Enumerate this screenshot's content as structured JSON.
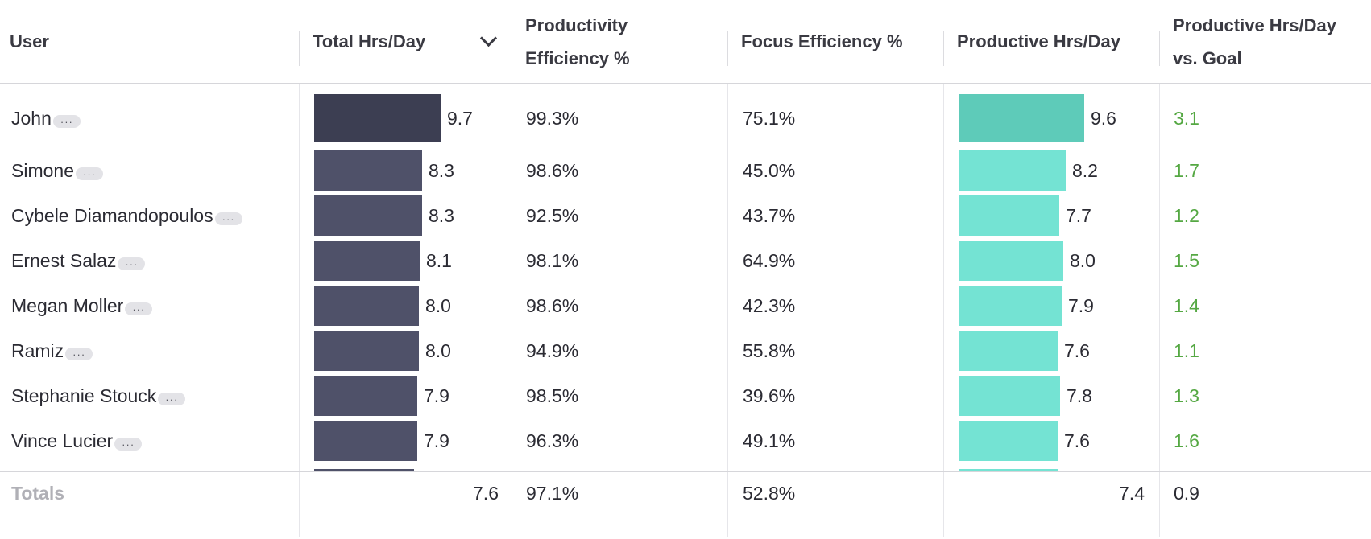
{
  "columns": {
    "user": "User",
    "total": "Total Hrs/Day",
    "productivity_line1": "Productivity",
    "productivity_line2": "Efficiency %",
    "focus": "Focus Efficiency %",
    "productive": "Productive Hrs/Day",
    "goal_line1": "Productive Hrs/Day",
    "goal_line2": "vs. Goal"
  },
  "more_label": "···",
  "rows": [
    {
      "user": "John",
      "total": "9.7",
      "total_value": 9.7,
      "productivity": "99.3%",
      "focus": "75.1%",
      "productive": "9.6",
      "productive_value": 9.6,
      "goal": "3.1"
    },
    {
      "user": "Simone",
      "total": "8.3",
      "total_value": 8.3,
      "productivity": "98.6%",
      "focus": "45.0%",
      "productive": "8.2",
      "productive_value": 8.2,
      "goal": "1.7"
    },
    {
      "user": "Cybele Diamandopoulos",
      "total": "8.3",
      "total_value": 8.3,
      "productivity": "92.5%",
      "focus": "43.7%",
      "productive": "7.7",
      "productive_value": 7.7,
      "goal": "1.2"
    },
    {
      "user": "Ernest Salaz",
      "total": "8.1",
      "total_value": 8.1,
      "productivity": "98.1%",
      "focus": "64.9%",
      "productive": "8.0",
      "productive_value": 8.0,
      "goal": "1.5"
    },
    {
      "user": "Megan Moller",
      "total": "8.0",
      "total_value": 8.0,
      "productivity": "98.6%",
      "focus": "42.3%",
      "productive": "7.9",
      "productive_value": 7.9,
      "goal": "1.4"
    },
    {
      "user": "Ramiz",
      "total": "8.0",
      "total_value": 8.0,
      "productivity": "94.9%",
      "focus": "55.8%",
      "productive": "7.6",
      "productive_value": 7.6,
      "goal": "1.1"
    },
    {
      "user": "Stephanie Stouck",
      "total": "7.9",
      "total_value": 7.9,
      "productivity": "98.5%",
      "focus": "39.6%",
      "productive": "7.8",
      "productive_value": 7.8,
      "goal": "1.3"
    },
    {
      "user": "Vince Lucier",
      "total": "7.9",
      "total_value": 7.9,
      "productivity": "96.3%",
      "focus": "49.1%",
      "productive": "7.6",
      "productive_value": 7.6,
      "goal": "1.6"
    }
  ],
  "totals": {
    "label": "Totals",
    "total": "7.6",
    "productivity": "97.1%",
    "focus": "52.8%",
    "productive": "7.4",
    "goal": "0.9"
  },
  "colors": {
    "total_bar": "#4f5169",
    "total_bar_top": "#3c3e52",
    "productive_bar": "#74e3d3",
    "productive_bar_top": "#5ecbb9",
    "goal_text": "#55a843"
  },
  "sort": {
    "column": "total",
    "direction": "descending",
    "icon": "chevron-down-icon"
  }
}
